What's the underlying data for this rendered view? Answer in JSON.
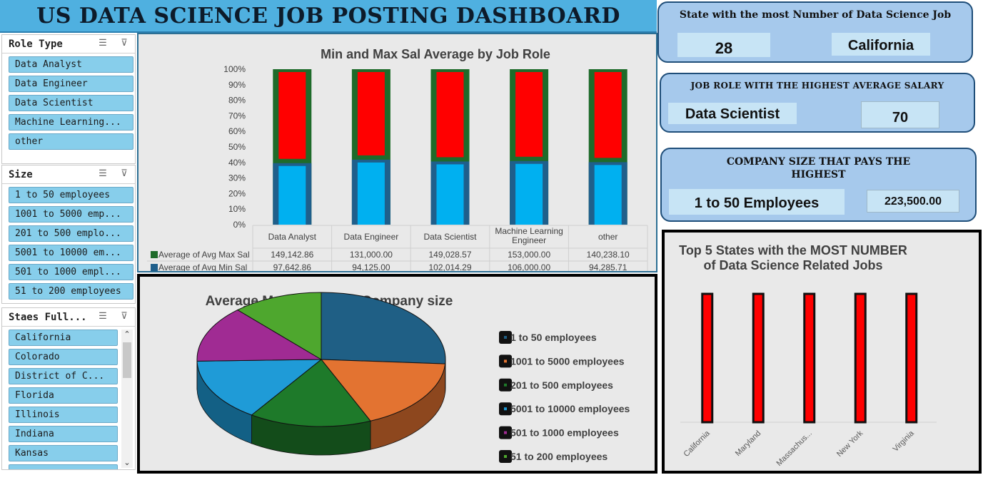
{
  "title": "US DATA SCIENCE JOB POSTING DASHBOARD",
  "slicers": {
    "role": {
      "title": "Role Type",
      "items": [
        "Data Analyst",
        "Data Engineer",
        "Data Scientist",
        "Machine Learning...",
        "other"
      ]
    },
    "size": {
      "title": "Size",
      "items": [
        "1 to 50 employees",
        "1001 to 5000 emp...",
        "201 to 500 emplo...",
        "5001 to 10000 em...",
        "501 to 1000 empl...",
        "51 to 200 employees"
      ]
    },
    "states": {
      "title": "Staes Full...",
      "items": [
        "California",
        "Colorado",
        "District of C...",
        "Florida",
        "Illinois",
        "Indiana",
        "Kansas"
      ]
    },
    "icons": {
      "multi_select": "multi-select-icon",
      "clear_filter": "clear-filter-icon"
    }
  },
  "kpis": {
    "state": {
      "title": "State with the most Number of Data Science Job",
      "count": "28",
      "name": "California"
    },
    "role": {
      "title": "JOB ROLE WITH THE HIGHEST AVERAGE SALARY",
      "name": "Data Scientist",
      "value": "70"
    },
    "company": {
      "title": "COMPANY SIZE THAT PAYS THE HIGHEST",
      "name": "1 to 50 Employees",
      "value": "223,500.00"
    }
  },
  "chart_data": [
    {
      "type": "bar",
      "stacked": "100%",
      "title": "Min and Max Sal Average by Job Role",
      "categories": [
        "Data Analyst",
        "Data Engineer",
        "Data Scientist",
        "Machine Learning Engineer",
        "other"
      ],
      "category_labels": [
        [
          "Data Analyst"
        ],
        [
          "Data Engineer"
        ],
        [
          "Data Scientist"
        ],
        [
          "Machine Learning",
          "Engineer"
        ],
        [
          "other"
        ]
      ],
      "yticks": [
        "0%",
        "10%",
        "20%",
        "30%",
        "40%",
        "50%",
        "60%",
        "70%",
        "80%",
        "90%",
        "100%"
      ],
      "ylim": [
        0,
        100
      ],
      "series": [
        {
          "name": "Average of Avg Max Sal",
          "values": [
            149142.86,
            131000.0,
            149028.57,
            153000.0,
            140238.1
          ],
          "labels": [
            "149,142.86",
            "131,000.00",
            "149,028.57",
            "153,000.00",
            "140,238.10"
          ],
          "color": "#ff0000",
          "legend_color": "#1e6b2a"
        },
        {
          "name": "Average of Avg Min Sal",
          "values": [
            97642.86,
            94125.0,
            102014.29,
            106000.0,
            94285.71
          ],
          "labels": [
            "97,642.86",
            "94,125.00",
            "102,014.29",
            "106,000.00",
            "94,285.71"
          ],
          "color": "#00b0f0",
          "legend_color": "#1f5f8b"
        }
      ],
      "data_table": true
    },
    {
      "type": "pie",
      "title": "Average Max Salary per Company size",
      "categories": [
        "1 to 50 employees",
        "1001 to 5000 employees",
        "201 to 500 employees",
        "5001 to 10000 employees",
        "501 to 1000 employees",
        "51 to 200 employees"
      ],
      "values": [
        223500,
        150000,
        137000,
        130000,
        117000,
        101000
      ],
      "colors": [
        "#1f5f85",
        "#e37331",
        "#1e7a2a",
        "#1f9bd7",
        "#a02b93",
        "#4ea72e"
      ],
      "legend": "right"
    },
    {
      "type": "bar",
      "title": "Top 5 States with the MOST NUMBER of Data Science Related Jobs",
      "title_lines": [
        "Top 5 States with the MOST NUMBER",
        "of Data Science Related Jobs"
      ],
      "categories": [
        "California",
        "Maryland",
        "Massachus...",
        "New York",
        "Virginia"
      ],
      "values": [
        28,
        28,
        28,
        28,
        28
      ],
      "color": "#ff0000",
      "grid": false,
      "value_axis": "hidden"
    }
  ]
}
